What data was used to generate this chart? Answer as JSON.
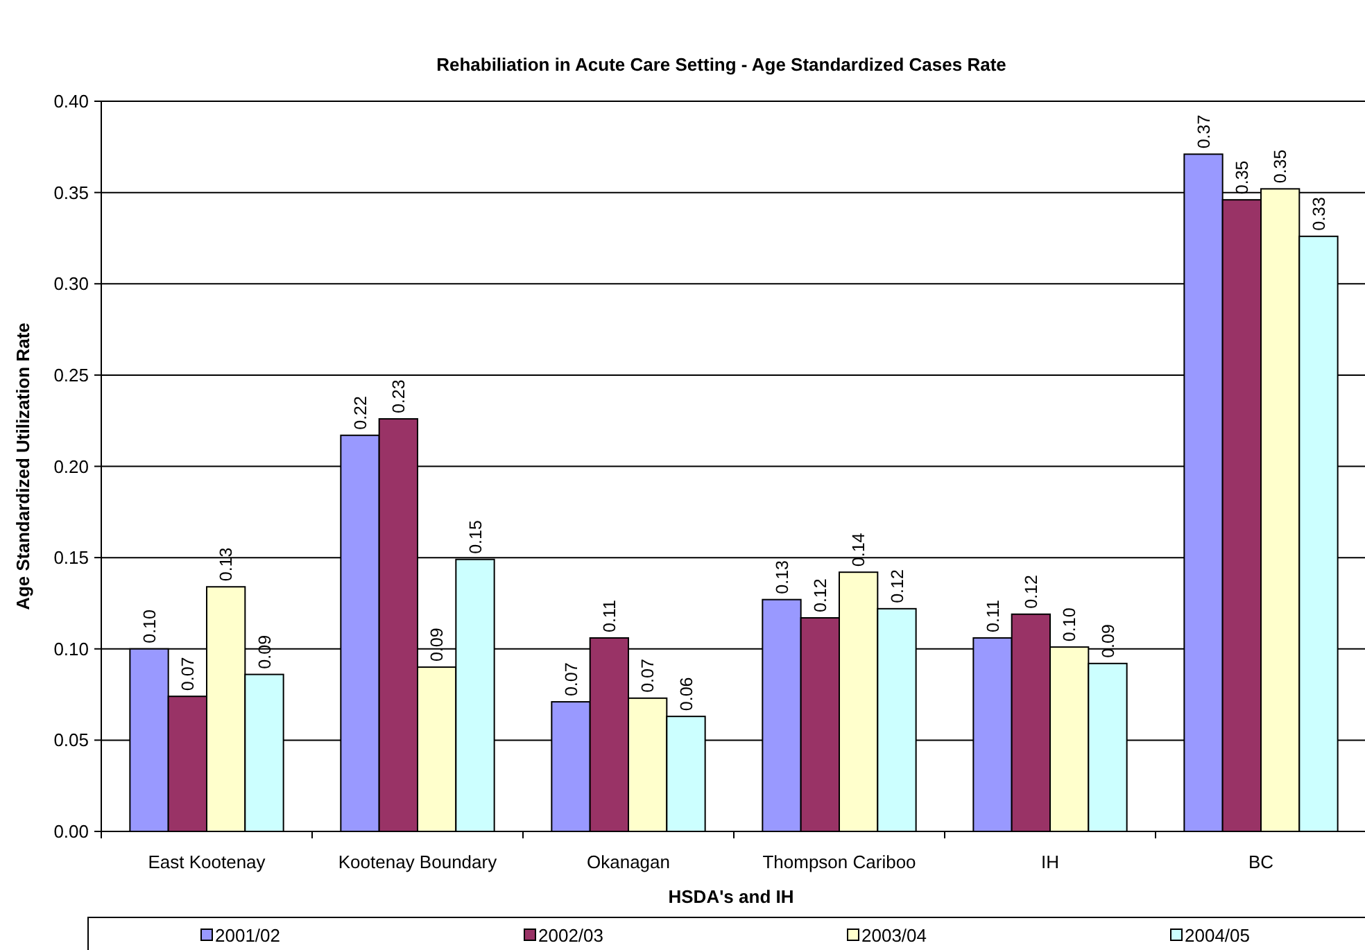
{
  "chart_data": {
    "type": "bar",
    "title": "Rehabiliation in Acute Care Setting - Age Standardized Cases Rate",
    "xlabel": "HSDA's and IH",
    "ylabel": "Age Standardized Utilization Rate",
    "categories": [
      "East Kootenay",
      "Kootenay Boundary",
      "Okanagan",
      "Thompson Cariboo",
      "IH",
      "BC"
    ],
    "series": [
      {
        "name": "2001/02",
        "color": "#9999ff",
        "values": [
          0.1,
          0.217,
          0.071,
          0.127,
          0.106,
          0.371
        ],
        "value_labels": [
          "0.10",
          "0.22",
          "0.07",
          "0.13",
          "0.11",
          "0.37"
        ]
      },
      {
        "name": "2002/03",
        "color": "#993366",
        "values": [
          0.074,
          0.226,
          0.106,
          0.117,
          0.119,
          0.346
        ],
        "value_labels": [
          "0.07",
          "0.23",
          "0.11",
          "0.12",
          "0.12",
          "0.35"
        ]
      },
      {
        "name": "2003/04",
        "color": "#ffffcc",
        "values": [
          0.134,
          0.09,
          0.073,
          0.142,
          0.101,
          0.352
        ],
        "value_labels": [
          "0.13",
          "0.09",
          "0.07",
          "0.14",
          "0.10",
          "0.35"
        ]
      },
      {
        "name": "2004/05",
        "color": "#ccffff",
        "values": [
          0.086,
          0.149,
          0.063,
          0.122,
          0.092,
          0.326
        ],
        "value_labels": [
          "0.09",
          "0.15",
          "0.06",
          "0.12",
          "0.09",
          "0.33"
        ]
      }
    ],
    "ylim": [
      0,
      0.4
    ],
    "yticks": [
      {
        "value": 0,
        "label": "0.00"
      },
      {
        "value": 0.05,
        "label": "0.05"
      },
      {
        "value": 0.1,
        "label": "0.10"
      },
      {
        "value": 0.15,
        "label": "0.15"
      },
      {
        "value": 0.2,
        "label": "0.20"
      },
      {
        "value": 0.25,
        "label": "0.25"
      },
      {
        "value": 0.3,
        "label": "0.30"
      },
      {
        "value": 0.35,
        "label": "0.35"
      },
      {
        "value": 0.4,
        "label": "0.40"
      }
    ],
    "grid": "y",
    "legend": "bottom"
  }
}
